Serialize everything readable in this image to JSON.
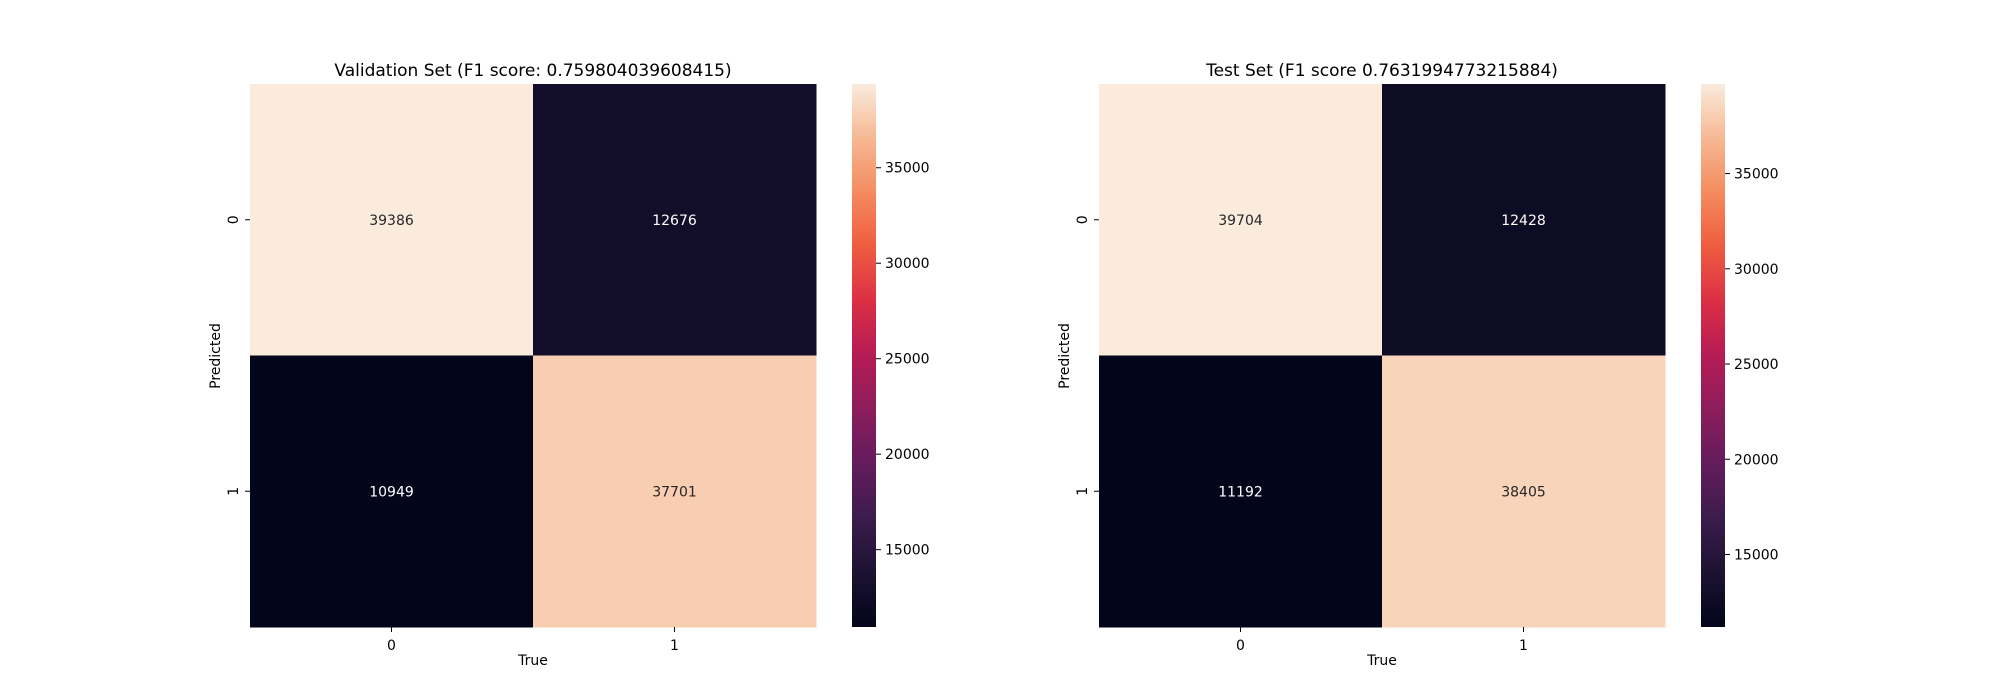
{
  "chart_data": [
    {
      "type": "heatmap",
      "title": "Validation Set (F1 score: 0.759804039608415)",
      "xlabel": "True",
      "ylabel": "Predicted",
      "x_categories": [
        "0",
        "1"
      ],
      "y_categories": [
        "0",
        "1"
      ],
      "values": [
        [
          39386,
          12676
        ],
        [
          10949,
          37701
        ]
      ],
      "value_labels": [
        [
          "39386",
          "12676"
        ],
        [
          "10949",
          "37701"
        ]
      ],
      "colormap": "rocket",
      "color_range": [
        10949,
        39386
      ],
      "colorbar": {
        "ticks": [
          15000,
          20000,
          25000,
          30000,
          35000
        ],
        "tick_labels": [
          "15000",
          "20000",
          "25000",
          "30000",
          "35000"
        ]
      },
      "grid": false
    },
    {
      "type": "heatmap",
      "title": "Test Set (F1 score 0.7631994773215884)",
      "xlabel": "True",
      "ylabel": "Predicted",
      "x_categories": [
        "0",
        "1"
      ],
      "y_categories": [
        "0",
        "1"
      ],
      "values": [
        [
          39704,
          12428
        ],
        [
          11192,
          38405
        ]
      ],
      "value_labels": [
        [
          "39704",
          "12428"
        ],
        [
          "11192",
          "38405"
        ]
      ],
      "colormap": "rocket",
      "color_range": [
        11192,
        39704
      ],
      "colorbar": {
        "ticks": [
          15000,
          20000,
          25000,
          30000,
          35000
        ],
        "tick_labels": [
          "15000",
          "20000",
          "25000",
          "30000",
          "35000"
        ]
      },
      "grid": false
    }
  ]
}
